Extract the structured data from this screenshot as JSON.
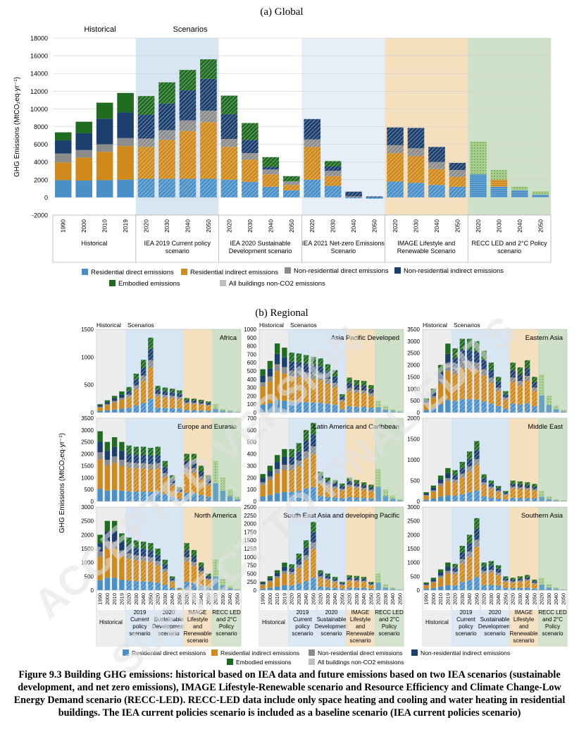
{
  "colors": {
    "resid_direct": "#4a90c8",
    "resid_indirect": "#d08a1c",
    "nonres_direct": "#8c8c8c",
    "nonres_indirect": "#1c3f6e",
    "embodied": "#1f6b1f",
    "non_co2": "#bfbfbf",
    "bg_historical": "#ececec",
    "bg_iea_cp": "#d8e5f3",
    "bg_iea_sd": "#ffffff",
    "bg_iea_nz": "#e6eef8",
    "bg_image": "#f4dfbf",
    "bg_recc": "#cfe0c9"
  },
  "panel_a": {
    "title": "(a)  Global",
    "historical_label": "Historical",
    "scenarios_label": "Scenarios"
  },
  "panel_b": {
    "title": "(b)  Regional",
    "historical_label": "Historical",
    "scenarios_label": "Scenarios",
    "ylabel": "GHG Emissions (MtCO₂eq·yr⁻¹)"
  },
  "legend": {
    "resid_direct": "Residential direct emissions",
    "resid_indirect": "Residential indirect emissions",
    "nonres_direct": "Non-residential direct emissions",
    "nonres_indirect": "Non-residential indirect emissions",
    "embodied": "Embodied emissions",
    "non_co2": "All buildings non-CO2 emissions"
  },
  "caption": "Figure 9.3 Building GHG emissions: historical based on IEA data and future emissions based on two IEA scenarios (sustainable development, and net zero emissions), IMAGE Lifestyle-Renewable scenario and Resource Efficiency and Climate Change-Low Energy Demand scenario (RECC-LED). RECC-LED data include only space heating and cooling and water heating in residential buildings. The IEA current policies scenario is included as a baseline scenario (IEA current policies scenario)",
  "chart_data": [
    {
      "type": "bar",
      "stacked": true,
      "title": "(a)  Global",
      "ylabel": "GHG Emissions (MtCO₂eq·yr⁻¹)",
      "ylim": [
        -2000,
        18000
      ],
      "yticks": [
        -2000,
        0,
        2000,
        4000,
        6000,
        8000,
        10000,
        12000,
        14000,
        16000,
        18000
      ],
      "grid": true,
      "groups": [
        {
          "name": "Historical",
          "x": [
            "1990",
            "2000",
            "2010",
            "2019"
          ]
        },
        {
          "name": "IEA 2019 Current policy scenario",
          "x": [
            "2020",
            "2030",
            "2040",
            "2050"
          ]
        },
        {
          "name": "IEA 2020 Sustainable Development scenario",
          "x": [
            "2020",
            "2030",
            "2040",
            "2050"
          ]
        },
        {
          "name": "IEA 2021 Net-zero Emissions Scenario",
          "x": [
            "2020",
            "2030",
            "2040",
            "2050"
          ]
        },
        {
          "name": "IMAGE Lifestyle and Renewable Scenario",
          "x": [
            "2020",
            "2030",
            "2040",
            "2050"
          ]
        },
        {
          "name": "RECC LED and 2°C  Policy scenario",
          "x": [
            "2020",
            "2030",
            "2040",
            "2050"
          ]
        }
      ],
      "series": [
        {
          "name": "Residential direct emissions",
          "values": [
            1950,
            1900,
            1950,
            2000,
            2100,
            2100,
            2100,
            2100,
            2000,
            1750,
            1200,
            800,
            2000,
            1300,
            -100,
            -150,
            1800,
            1650,
            1400,
            1200,
            2600,
            1200,
            800,
            300
          ]
        },
        {
          "name": "Residential indirect emissions",
          "values": [
            2000,
            2600,
            3200,
            3800,
            3600,
            4400,
            5400,
            6400,
            3700,
            2500,
            1400,
            600,
            3700,
            1100,
            0,
            0,
            3200,
            3000,
            1800,
            1100,
            0,
            800,
            0,
            0
          ]
        },
        {
          "name": "Non-residential direct emissions",
          "values": [
            1000,
            850,
            850,
            900,
            950,
            1100,
            1200,
            1300,
            900,
            750,
            550,
            400,
            850,
            600,
            100,
            0,
            900,
            900,
            800,
            800,
            0,
            0,
            0,
            0
          ]
        },
        {
          "name": "Non-residential indirect emissions",
          "values": [
            1500,
            1900,
            2900,
            2900,
            2700,
            3000,
            3400,
            3600,
            2800,
            1500,
            300,
            0,
            2300,
            500,
            550,
            100,
            2000,
            2300,
            1700,
            800,
            0,
            0,
            0,
            0
          ]
        },
        {
          "name": "Embodied emissions",
          "values": [
            900,
            1300,
            1800,
            2200,
            2100,
            2400,
            2300,
            2200,
            2100,
            1900,
            1100,
            600,
            0,
            600,
            0,
            0,
            0,
            0,
            0,
            0,
            0,
            0,
            0,
            0
          ]
        },
        {
          "name": "All buildings non-CO2 emissions",
          "values": [
            0,
            0,
            0,
            0,
            0,
            0,
            0,
            0,
            0,
            0,
            0,
            0,
            0,
            0,
            0,
            0,
            0,
            0,
            0,
            0,
            3700,
            1100,
            400,
            400
          ]
        }
      ]
    },
    {
      "type": "bar",
      "stacked": true,
      "title": "(b)  Regional",
      "ylabel": "GHG Emissions (MtCO₂eq·yr⁻¹)",
      "group_labels": [
        "Historical",
        "2019 Current policy scenario",
        "2020 Sustainable Development scenario",
        "IMAGE Lifestyle and Renewable scenario",
        "RECC LED and 2°C Policy scenario"
      ],
      "x": [
        "1990",
        "2000",
        "2010",
        "2019",
        "2020",
        "2030",
        "2040",
        "2050",
        "2020",
        "2030",
        "2040",
        "2050",
        "2020",
        "2030",
        "2040",
        "2050",
        "2020",
        "2030",
        "2040",
        "2050"
      ],
      "regions": [
        {
          "name": "Africa",
          "ylim": [
            0,
            1500
          ],
          "yticks": [
            0,
            500,
            1000,
            1500
          ],
          "totals": [
            150,
            220,
            300,
            380,
            460,
            700,
            950,
            1350,
            480,
            450,
            430,
            400,
            260,
            250,
            230,
            200,
            150,
            70,
            40,
            20
          ]
        },
        {
          "name": "Asia Pacific Developed",
          "ylim": [
            0,
            1000
          ],
          "yticks": [
            0,
            100,
            200,
            300,
            400,
            500,
            600,
            700,
            800,
            900,
            1000
          ],
          "totals": [
            520,
            620,
            830,
            780,
            720,
            710,
            690,
            670,
            650,
            580,
            510,
            220,
            420,
            390,
            380,
            330,
            140,
            80,
            40,
            20
          ]
        },
        {
          "name": "Eastern Asia",
          "ylim": [
            0,
            3500
          ],
          "yticks": [
            0,
            500,
            1000,
            1500,
            2000,
            2500,
            3000,
            3500
          ],
          "totals": [
            600,
            1000,
            2000,
            2900,
            2700,
            3100,
            3100,
            3000,
            2600,
            2100,
            1500,
            900,
            2100,
            1900,
            2200,
            1500,
            1600,
            700,
            300,
            100
          ]
        },
        {
          "name": "Europe and Eurasia",
          "ylim": [
            0,
            3500
          ],
          "yticks": [
            0,
            500,
            1000,
            1500,
            2000,
            2500,
            3000,
            3500
          ],
          "totals": [
            2950,
            2500,
            2700,
            2500,
            2350,
            2300,
            2300,
            2250,
            2300,
            1700,
            1100,
            600,
            2000,
            2000,
            1500,
            1100,
            1700,
            1000,
            500,
            200
          ]
        },
        {
          "name": "Latin America and Caribbean",
          "ylim": [
            0,
            700
          ],
          "yticks": [
            0,
            100,
            200,
            300,
            400,
            500,
            600,
            700
          ],
          "totals": [
            230,
            300,
            390,
            440,
            440,
            490,
            600,
            660,
            250,
            200,
            180,
            150,
            200,
            180,
            160,
            140,
            270,
            100,
            50,
            20
          ]
        },
        {
          "name": "Middle East",
          "ylim": [
            0,
            2000
          ],
          "yticks": [
            0,
            500,
            1000,
            1500,
            2000
          ],
          "totals": [
            220,
            380,
            620,
            800,
            750,
            950,
            1200,
            1450,
            650,
            500,
            370,
            250,
            500,
            480,
            460,
            420,
            250,
            120,
            50,
            20
          ]
        },
        {
          "name": "North America",
          "ylim": [
            0,
            3000
          ],
          "yticks": [
            0,
            500,
            1000,
            1500,
            2000,
            2500,
            3000
          ],
          "totals": [
            2000,
            2500,
            2500,
            2050,
            1900,
            1800,
            1750,
            1700,
            1500,
            1100,
            500,
            80,
            1700,
            1450,
            1000,
            600,
            1100,
            400,
            150,
            50
          ]
        },
        {
          "name": "South East Asia and developing Pacific",
          "ylim": [
            0,
            2500
          ],
          "yticks": [
            0,
            250,
            500,
            750,
            1000,
            1250,
            1500,
            1750,
            2000,
            2250,
            2500
          ],
          "totals": [
            260,
            420,
            600,
            830,
            780,
            1100,
            1500,
            2050,
            600,
            500,
            400,
            250,
            450,
            430,
            400,
            250,
            500,
            180,
            80,
            30
          ]
        },
        {
          "name": "Southern Asia",
          "ylim": [
            0,
            3000
          ],
          "yticks": [
            0,
            500,
            1000,
            1500,
            2000,
            2500,
            3000
          ],
          "totals": [
            280,
            450,
            750,
            1000,
            950,
            1600,
            2000,
            2600,
            1000,
            1050,
            900,
            500,
            450,
            500,
            550,
            380,
            450,
            220,
            100,
            40
          ]
        }
      ]
    }
  ]
}
